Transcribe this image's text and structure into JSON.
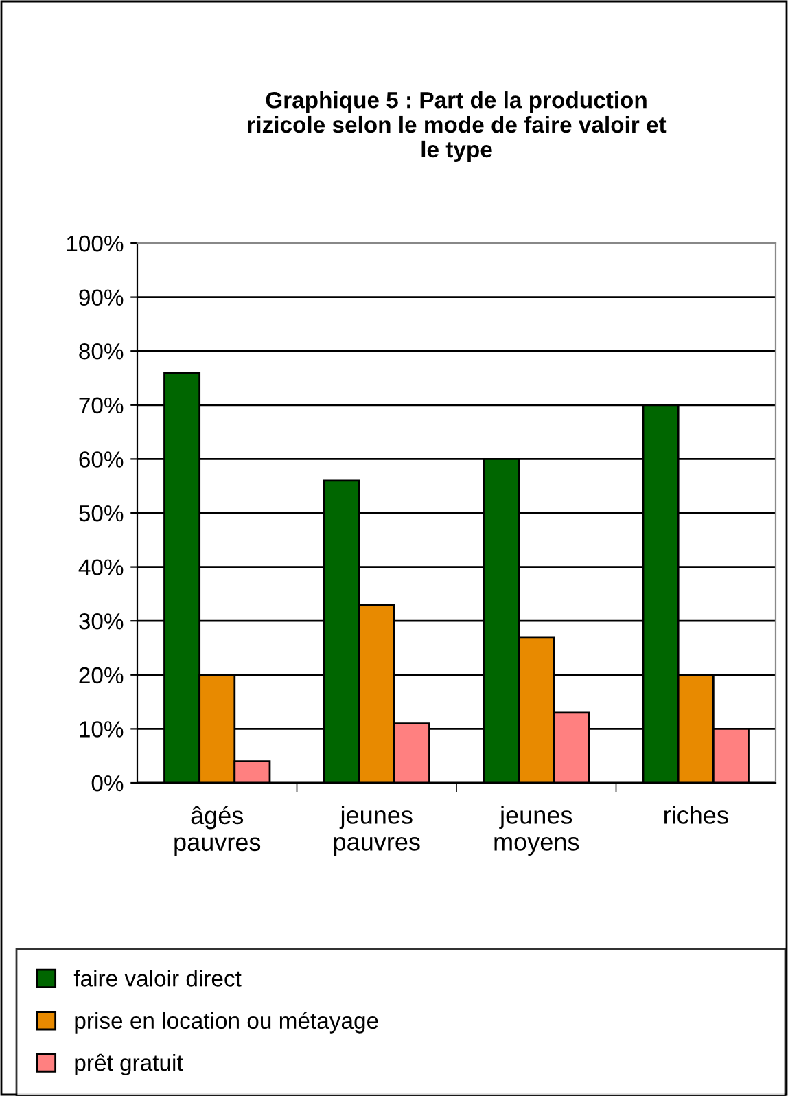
{
  "chart_data": {
    "type": "bar",
    "title": "Graphique 5 : Part de la production\nrizicole selon le mode de faire valoir et\nle type",
    "categories": [
      "âgés\npauvres",
      "jeunes\npauvres",
      "jeunes\nmoyens",
      "riches"
    ],
    "series": [
      {
        "name": "faire valoir direct",
        "color": "#006600",
        "values": [
          76,
          56,
          60,
          70
        ]
      },
      {
        "name": "prise en location ou métayage",
        "color": "#e88a00",
        "values": [
          20,
          33,
          27,
          20
        ]
      },
      {
        "name": "prêt gratuit",
        "color": "#ff8080",
        "values": [
          4,
          11,
          13,
          10
        ]
      }
    ],
    "ylim": [
      0,
      100
    ],
    "yticks": [
      {
        "value": 0,
        "label": "0%"
      },
      {
        "value": 10,
        "label": "10%"
      },
      {
        "value": 20,
        "label": "20%"
      },
      {
        "value": 30,
        "label": "30%"
      },
      {
        "value": 40,
        "label": "40%"
      },
      {
        "value": 50,
        "label": "50%"
      },
      {
        "value": 60,
        "label": "60%"
      },
      {
        "value": 70,
        "label": "70%"
      },
      {
        "value": 80,
        "label": "80%"
      },
      {
        "value": 90,
        "label": "90%"
      },
      {
        "value": 100,
        "label": "100%"
      }
    ],
    "grid": "y",
    "legend": "bottom"
  }
}
